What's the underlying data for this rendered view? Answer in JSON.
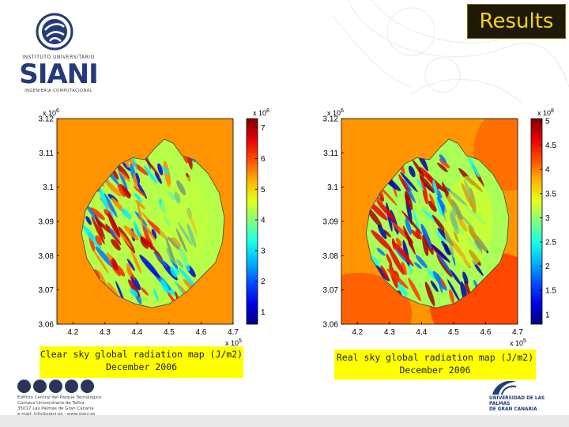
{
  "slide": {
    "title": "Results",
    "logo": {
      "text_top": "INSTITUTO UNIVERSITARIO",
      "name": "SIANI",
      "text_bottom": "INGENIERIA COMPUTACIONAL"
    },
    "footer_left": {
      "address_lines": [
        "Edificio Central del Parque Tecnológico",
        "Campus Universitario de Tafira",
        "35017 Las Palmas de Gran Canaria",
        "e-mail: info@siani.es - www.siani.es"
      ]
    },
    "footer_right": {
      "lines": [
        "UNIVERSIDAD DE LAS PALMAS",
        "DE GRAN CANARIA"
      ]
    },
    "colors": {
      "title_bg": "#1f1a06",
      "title_text": "#f2d21c",
      "caption_bg": "#ffff00",
      "logo_blue": "#253a7a"
    }
  },
  "chart_data": [
    {
      "type": "heatmap",
      "caption_lines": [
        "Clear sky global radiation map (J/m2)",
        "December 2006"
      ],
      "x_exponent": "x 10^5",
      "x_ticks": [
        "4.2",
        "4.3",
        "4.4",
        "4.5",
        "4.6",
        "4.7"
      ],
      "x_tick_values": [
        4.2,
        4.3,
        4.4,
        4.5,
        4.6,
        4.7
      ],
      "xlim": [
        4.15,
        4.7
      ],
      "y_exponent": "x 10^6",
      "y_ticks": [
        "3.12",
        "3.11",
        "3.1",
        "3.09",
        "3.08",
        "3.07",
        "3.06"
      ],
      "y_tick_values": [
        3.12,
        3.11,
        3.1,
        3.09,
        3.08,
        3.07,
        3.06
      ],
      "ylim": [
        3.06,
        3.12
      ],
      "colorbar_exponent": "x 10^8",
      "colorbar_ticks": [
        "7",
        "6",
        "5",
        "4",
        "3",
        "2",
        "1"
      ],
      "colorbar_tick_values": [
        7,
        6,
        5,
        4,
        3,
        2,
        1
      ],
      "colorbar_range": [
        0.6,
        7.3
      ],
      "background_level": 5.5
    },
    {
      "type": "heatmap",
      "caption_lines": [
        "Real sky global radiation map (J/m2)",
        "December 2006"
      ],
      "x_exponent": "x 10^5",
      "x_ticks": [
        "4.2",
        "4.3",
        "4.4",
        "4.5",
        "4.6",
        "4.7"
      ],
      "x_tick_values": [
        4.2,
        4.3,
        4.4,
        4.5,
        4.6,
        4.7
      ],
      "xlim": [
        4.15,
        4.7
      ],
      "y_exponent": "x 10^6",
      "y_ticks": [
        "3.12",
        "3.11",
        "3.1",
        "3.09",
        "3.08",
        "3.07",
        "3.06"
      ],
      "y_tick_values": [
        3.12,
        3.11,
        3.1,
        3.09,
        3.08,
        3.07,
        3.06
      ],
      "ylim": [
        3.06,
        3.12
      ],
      "colorbar_exponent": "x 10^8",
      "colorbar_ticks": [
        "5",
        "4.5",
        "4",
        "3.5",
        "3",
        "2.5",
        "2",
        "1.5",
        "1"
      ],
      "colorbar_tick_values": [
        5,
        4.5,
        4,
        3.5,
        3,
        2.5,
        2,
        1.5,
        1
      ],
      "colorbar_range": [
        0.8,
        5.05
      ],
      "background_level": 3.9
    }
  ]
}
